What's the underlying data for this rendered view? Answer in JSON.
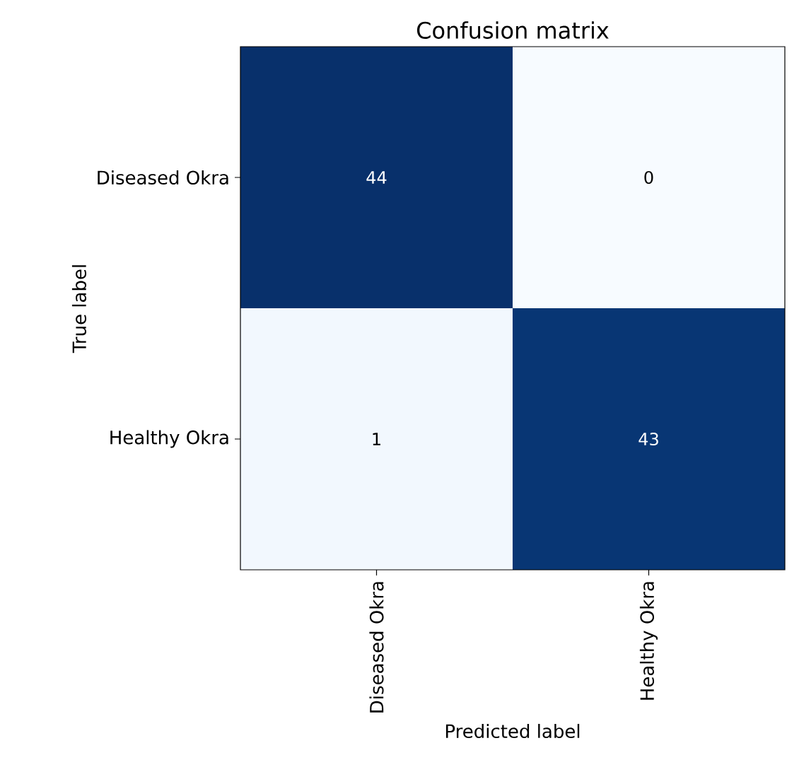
{
  "chart_data": {
    "type": "heatmap",
    "title": "Confusion matrix",
    "xlabel": "Predicted label",
    "ylabel": "True label",
    "categories": [
      "Diseased Okra",
      "Healthy Okra"
    ],
    "y_categories": [
      "Diseased Okra",
      "Healthy Okra"
    ],
    "cells": [
      [
        44,
        0
      ],
      [
        1,
        43
      ]
    ],
    "data_labels": true
  }
}
